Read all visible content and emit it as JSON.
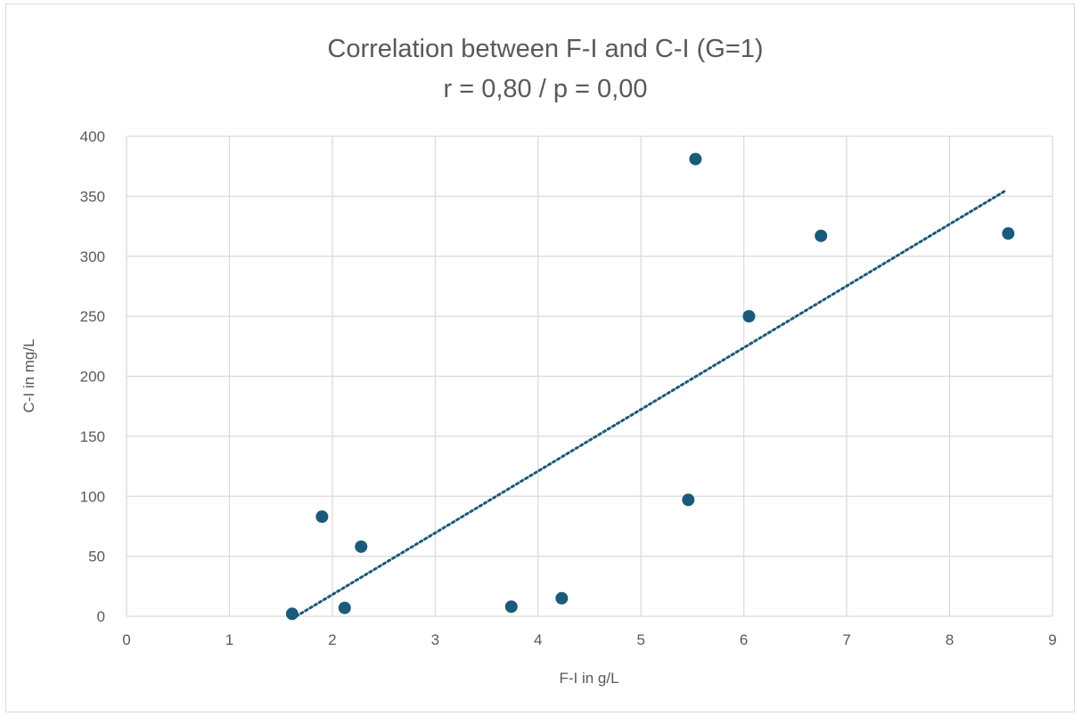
{
  "chart_data": {
    "type": "scatter",
    "title": "Correlation between F-I and C-I (G=1)",
    "subtitle": "r = 0,80 / p = 0,00",
    "xlabel": "F-I in g/L",
    "ylabel": "C-I in mg/L",
    "xlim": [
      0,
      9
    ],
    "ylim": [
      0,
      400
    ],
    "x_ticks": [
      "0",
      "1",
      "2",
      "3",
      "4",
      "5",
      "6",
      "7",
      "8",
      "9"
    ],
    "y_ticks": [
      "0",
      "50",
      "100",
      "150",
      "200",
      "250",
      "300",
      "350",
      "400"
    ],
    "grid": true,
    "legend": "none",
    "points": [
      {
        "x": 1.61,
        "y": 2
      },
      {
        "x": 1.9,
        "y": 83
      },
      {
        "x": 2.12,
        "y": 7
      },
      {
        "x": 2.28,
        "y": 58
      },
      {
        "x": 3.74,
        "y": 8
      },
      {
        "x": 4.23,
        "y": 15
      },
      {
        "x": 5.46,
        "y": 97
      },
      {
        "x": 5.53,
        "y": 381
      },
      {
        "x": 6.05,
        "y": 250
      },
      {
        "x": 6.75,
        "y": 317
      },
      {
        "x": 8.57,
        "y": 319
      }
    ],
    "trendline": {
      "type": "linear",
      "x_start": 1.65,
      "y_start": 0,
      "x_end": 8.55,
      "y_end": 355
    },
    "colors": {
      "marker": "#1a5a7a",
      "trendline": "#1a5a7a",
      "grid": "#d9d9d9",
      "text": "#595959"
    }
  }
}
